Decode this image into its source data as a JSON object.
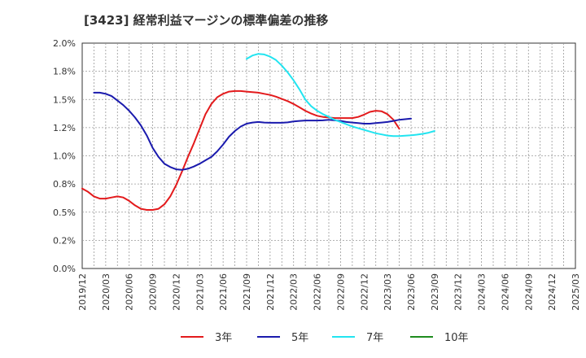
{
  "chart_data": {
    "type": "line",
    "title": "[3423]  経常利益マージンの標準偏差の推移",
    "xlabel": "",
    "ylabel": "",
    "ylim": [
      0.0,
      2.0
    ],
    "y_ticks": [
      "2.0%",
      "1.8%",
      "1.5%",
      "1.2%",
      "1.0%",
      "0.8%",
      "0.5%",
      "0.2%",
      "0.0%"
    ],
    "y_tick_values": [
      2.0,
      1.75,
      1.5,
      1.25,
      1.0,
      0.75,
      0.5,
      0.25,
      0.0
    ],
    "x_ticks": [
      "2019/12",
      "2020/03",
      "2020/06",
      "2020/09",
      "2020/12",
      "2021/03",
      "2021/06",
      "2021/09",
      "2021/12",
      "2022/03",
      "2022/06",
      "2022/09",
      "2022/12",
      "2023/03",
      "2023/06",
      "2023/09",
      "2023/12",
      "2024/03",
      "2024/06",
      "2024/09",
      "2024/12",
      "2025/03"
    ],
    "grid": true,
    "legend_position": "bottom",
    "series": [
      {
        "name": "3年",
        "color": "#e31a1c",
        "points": [
          [
            0,
            0.71
          ],
          [
            0.5,
            0.68
          ],
          [
            1,
            0.64
          ],
          [
            1.5,
            0.62
          ],
          [
            2,
            0.62
          ],
          [
            2.5,
            0.63
          ],
          [
            3,
            0.64
          ],
          [
            3.5,
            0.63
          ],
          [
            4,
            0.6
          ],
          [
            4.5,
            0.56
          ],
          [
            5,
            0.53
          ],
          [
            5.5,
            0.52
          ],
          [
            6,
            0.52
          ],
          [
            6.5,
            0.53
          ],
          [
            7,
            0.57
          ],
          [
            7.5,
            0.64
          ],
          [
            8,
            0.74
          ],
          [
            8.5,
            0.86
          ],
          [
            9,
            0.99
          ],
          [
            9.5,
            1.11
          ],
          [
            10,
            1.24
          ],
          [
            10.5,
            1.37
          ],
          [
            11,
            1.46
          ],
          [
            11.5,
            1.52
          ],
          [
            12,
            1.55
          ],
          [
            12.5,
            1.57
          ],
          [
            13,
            1.575
          ],
          [
            13.5,
            1.575
          ],
          [
            14,
            1.57
          ],
          [
            14.5,
            1.565
          ],
          [
            15,
            1.56
          ],
          [
            15.5,
            1.55
          ],
          [
            16,
            1.54
          ],
          [
            16.5,
            1.525
          ],
          [
            17,
            1.505
          ],
          [
            17.5,
            1.485
          ],
          [
            18,
            1.46
          ],
          [
            18.5,
            1.43
          ],
          [
            19,
            1.4
          ],
          [
            19.5,
            1.375
          ],
          [
            20,
            1.355
          ],
          [
            20.5,
            1.345
          ],
          [
            21,
            1.34
          ],
          [
            21.5,
            1.335
          ],
          [
            22,
            1.335
          ],
          [
            22.5,
            1.335
          ],
          [
            23,
            1.335
          ],
          [
            23.5,
            1.345
          ],
          [
            24,
            1.365
          ],
          [
            24.5,
            1.39
          ],
          [
            25,
            1.4
          ],
          [
            25.5,
            1.395
          ],
          [
            26,
            1.37
          ],
          [
            26.5,
            1.32
          ],
          [
            27,
            1.24
          ]
        ]
      },
      {
        "name": "5年",
        "color": "#1a1aad",
        "points": [
          [
            1,
            1.56
          ],
          [
            1.5,
            1.56
          ],
          [
            2,
            1.55
          ],
          [
            2.5,
            1.53
          ],
          [
            3,
            1.49
          ],
          [
            3.5,
            1.45
          ],
          [
            4,
            1.4
          ],
          [
            4.5,
            1.34
          ],
          [
            5,
            1.27
          ],
          [
            5.5,
            1.18
          ],
          [
            6,
            1.07
          ],
          [
            6.5,
            0.99
          ],
          [
            7,
            0.93
          ],
          [
            7.5,
            0.9
          ],
          [
            8,
            0.88
          ],
          [
            8.5,
            0.875
          ],
          [
            9,
            0.885
          ],
          [
            9.5,
            0.905
          ],
          [
            10,
            0.93
          ],
          [
            10.5,
            0.96
          ],
          [
            11,
            0.99
          ],
          [
            11.5,
            1.04
          ],
          [
            12,
            1.1
          ],
          [
            12.5,
            1.17
          ],
          [
            13,
            1.22
          ],
          [
            13.5,
            1.26
          ],
          [
            14,
            1.285
          ],
          [
            14.5,
            1.295
          ],
          [
            15,
            1.3
          ],
          [
            15.5,
            1.295
          ],
          [
            16,
            1.293
          ],
          [
            16.5,
            1.293
          ],
          [
            17,
            1.293
          ],
          [
            17.5,
            1.297
          ],
          [
            18,
            1.305
          ],
          [
            18.5,
            1.31
          ],
          [
            19,
            1.313
          ],
          [
            19.5,
            1.313
          ],
          [
            20,
            1.313
          ],
          [
            20.5,
            1.315
          ],
          [
            21,
            1.32
          ],
          [
            21.5,
            1.315
          ],
          [
            22,
            1.31
          ],
          [
            22.5,
            1.3
          ],
          [
            23,
            1.295
          ],
          [
            23.5,
            1.29
          ],
          [
            24,
            1.285
          ],
          [
            24.5,
            1.285
          ],
          [
            25,
            1.29
          ],
          [
            25.5,
            1.295
          ],
          [
            26,
            1.3
          ],
          [
            26.5,
            1.31
          ],
          [
            27,
            1.32
          ],
          [
            27.5,
            1.325
          ],
          [
            28,
            1.33
          ]
        ]
      },
      {
        "name": "7年",
        "color": "#22e4f0",
        "points": [
          [
            14,
            1.86
          ],
          [
            14.5,
            1.89
          ],
          [
            15,
            1.905
          ],
          [
            15.5,
            1.9
          ],
          [
            16,
            1.88
          ],
          [
            16.5,
            1.85
          ],
          [
            17,
            1.8
          ],
          [
            17.5,
            1.74
          ],
          [
            18,
            1.67
          ],
          [
            18.5,
            1.59
          ],
          [
            19,
            1.5
          ],
          [
            19.5,
            1.44
          ],
          [
            20,
            1.4
          ],
          [
            20.5,
            1.37
          ],
          [
            21,
            1.345
          ],
          [
            21.5,
            1.32
          ],
          [
            22,
            1.3
          ],
          [
            22.5,
            1.28
          ],
          [
            23,
            1.26
          ],
          [
            23.5,
            1.245
          ],
          [
            24,
            1.23
          ],
          [
            24.5,
            1.215
          ],
          [
            25,
            1.2
          ],
          [
            25.5,
            1.19
          ],
          [
            26,
            1.18
          ],
          [
            26.5,
            1.175
          ],
          [
            27,
            1.175
          ],
          [
            27.5,
            1.178
          ],
          [
            28,
            1.182
          ],
          [
            28.5,
            1.188
          ],
          [
            29,
            1.195
          ],
          [
            29.5,
            1.205
          ],
          [
            30,
            1.22
          ]
        ]
      },
      {
        "name": "10年",
        "color": "#1e8c1e",
        "points": []
      }
    ]
  }
}
